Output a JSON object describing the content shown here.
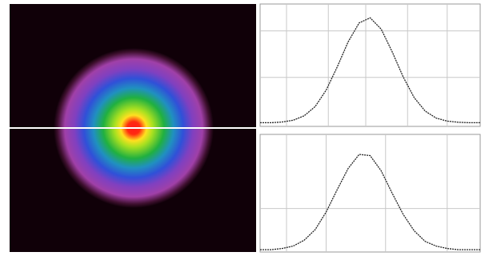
{
  "chart_data": [
    {
      "type": "line",
      "grid": true,
      "color": "#222222",
      "x": [
        0,
        0.05,
        0.1,
        0.15,
        0.2,
        0.25,
        0.3,
        0.35,
        0.4,
        0.45,
        0.5,
        0.55,
        0.6,
        0.65,
        0.7,
        0.75,
        0.8,
        0.85,
        0.9,
        0.95,
        1
      ],
      "values": [
        0.03,
        0.03,
        0.036,
        0.05,
        0.086,
        0.162,
        0.296,
        0.485,
        0.691,
        0.846,
        0.887,
        0.795,
        0.61,
        0.404,
        0.235,
        0.125,
        0.068,
        0.043,
        0.034,
        0.03,
        0.03
      ],
      "xlim": [
        0,
        1
      ],
      "ylim": [
        0,
        1
      ],
      "xticks": [
        0.12,
        0.31,
        0.48,
        0.67,
        0.85
      ],
      "yticks": [
        0.4,
        0.78
      ]
    },
    {
      "type": "line",
      "grid": true,
      "color": "#222222",
      "x": [
        0,
        0.05,
        0.1,
        0.15,
        0.2,
        0.25,
        0.3,
        0.35,
        0.4,
        0.45,
        0.5,
        0.55,
        0.6,
        0.65,
        0.7,
        0.75,
        0.8,
        0.85,
        0.9,
        0.95,
        1
      ],
      "values": [
        0.02,
        0.02,
        0.03,
        0.05,
        0.1,
        0.19,
        0.34,
        0.53,
        0.71,
        0.83,
        0.82,
        0.69,
        0.5,
        0.32,
        0.18,
        0.09,
        0.05,
        0.03,
        0.02,
        0.02,
        0.02
      ],
      "xlim": [
        0,
        1
      ],
      "ylim": [
        0,
        1
      ],
      "xticks": [
        0.12,
        0.3,
        0.57,
        0.85
      ],
      "yticks": [
        0.37
      ]
    }
  ]
}
